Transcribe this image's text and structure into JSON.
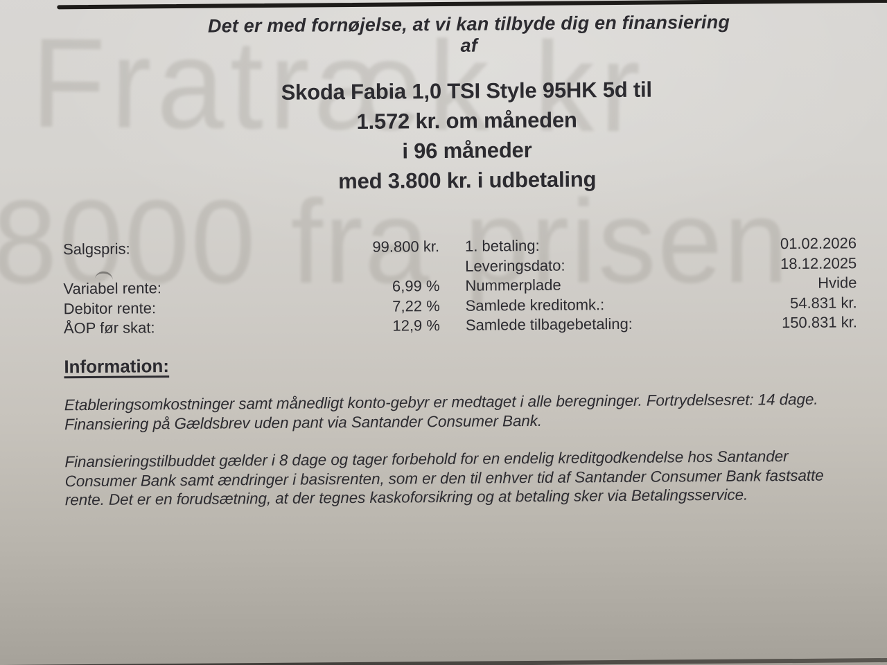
{
  "colors": {
    "ink_color": "#2c2b30",
    "rule_color": "#1d1b19",
    "watermark_color": "#69645a",
    "paper_top": "#d9d7d4",
    "paper_bottom": "#a29e96"
  },
  "document": {
    "intro_line": "Det er med fornøjelse, at vi kan tilbyde dig en finansiering af",
    "title_lines": [
      "Skoda Fabia 1,0 TSI Style 95HK 5d til",
      "1.572 kr. om måneden",
      "i 96 måneder",
      "med 3.800 kr. i udbetaling"
    ],
    "details_rows": [
      [
        "Salgspris:",
        "99.800 kr.",
        "1. betaling:",
        "01.02.2026"
      ],
      [
        "",
        "",
        "Leveringsdato:",
        "18.12.2025"
      ],
      [
        "Variabel rente:",
        "6,99 %",
        "Nummerplade",
        "Hvide"
      ],
      [
        "Debitor rente:",
        "7,22 %",
        "Samlede kreditomk.:",
        "54.831 kr."
      ],
      [
        "ÅOP før skat:",
        "12,9 %",
        "Samlede tilbagebetaling:",
        "150.831 kr."
      ]
    ],
    "information_heading": "Information:",
    "paragraph1_lines": [
      "Etableringsomkostninger samt månedligt konto-gebyr er medtaget i alle beregninger. Fortrydelsesret: 14 dage.",
      "Finansiering på Gældsbrev uden pant via Santander Consumer Bank."
    ],
    "paragraph2_lines": [
      "Finansieringstilbuddet gælder i 8 dage og tager forbehold for en endelig kreditgodkendelse hos Santander",
      "Consumer Bank samt ændringer i basisrenten, som er den til enhver tid af Santander Consumer Bank fastsatte",
      "rente. Det er en forudsætning, at der tegnes kaskoforsikring og at betaling sker via Betalingsservice."
    ],
    "watermark_line1": "Fratræk kr",
    "watermark_line2": "8000 fra prisen"
  }
}
